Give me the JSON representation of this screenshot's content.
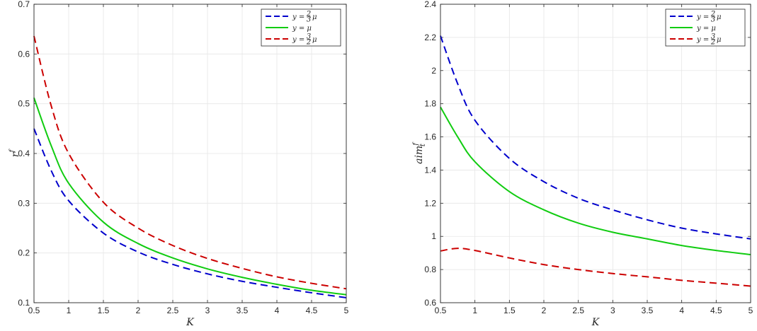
{
  "chart_data": [
    {
      "type": "line",
      "xlabel": "K",
      "ylabel": "r^f",
      "xlim": [
        0.5,
        5
      ],
      "ylim": [
        0.1,
        0.7
      ],
      "xticks": [
        0.5,
        1,
        1.5,
        2,
        2.5,
        3,
        3.5,
        4,
        4.5,
        5
      ],
      "xtick_labels": [
        "0.5",
        "1",
        "1.5",
        "2",
        "2.5",
        "3",
        "3.5",
        "4",
        "4.5",
        "5"
      ],
      "yticks": [
        0.1,
        0.2,
        0.3,
        0.4,
        0.5,
        0.6,
        0.7
      ],
      "ytick_labels": [
        "0.1",
        "0.2",
        "0.3",
        "0.4",
        "0.5",
        "0.6",
        "0.7"
      ],
      "grid": true,
      "legend_position": "top-right",
      "x": [
        0.5,
        0.75,
        1,
        1.5,
        2,
        2.5,
        3,
        3.5,
        4,
        4.5,
        5
      ],
      "series": [
        {
          "name": "y = 2/3 μ",
          "color": "#0000cc",
          "style": "dashed",
          "values": [
            0.45,
            0.365,
            0.305,
            0.24,
            0.202,
            0.177,
            0.158,
            0.143,
            0.131,
            0.12,
            0.11
          ]
        },
        {
          "name": "y = μ",
          "color": "#11cc11",
          "style": "solid",
          "values": [
            0.512,
            0.415,
            0.34,
            0.262,
            0.219,
            0.19,
            0.168,
            0.151,
            0.137,
            0.125,
            0.116
          ]
        },
        {
          "name": "y = 3/2 μ",
          "color": "#cc0000",
          "style": "dashed",
          "values": [
            0.636,
            0.495,
            0.4,
            0.302,
            0.25,
            0.215,
            0.189,
            0.169,
            0.152,
            0.139,
            0.128
          ]
        }
      ]
    },
    {
      "type": "line",
      "xlabel": "K",
      "ylabel": "aim_t^f",
      "xlim": [
        0.5,
        5
      ],
      "ylim": [
        0.6,
        2.4
      ],
      "xticks": [
        0.5,
        1,
        1.5,
        2,
        2.5,
        3,
        3.5,
        4,
        4.5,
        5
      ],
      "xtick_labels": [
        "0.5",
        "1",
        "1.5",
        "2",
        "2.5",
        "3",
        "3.5",
        "4",
        "4.5",
        "5"
      ],
      "yticks": [
        0.6,
        0.8,
        1,
        1.2,
        1.4,
        1.6,
        1.8,
        2,
        2.2,
        2.4
      ],
      "ytick_labels": [
        "0.6",
        "0.8",
        "1",
        "1.2",
        "1.4",
        "1.6",
        "1.8",
        "2",
        "2.2",
        "2.4"
      ],
      "grid": true,
      "legend_position": "top-right",
      "x": [
        0.5,
        0.75,
        1,
        1.5,
        2,
        2.5,
        3,
        3.5,
        4,
        4.5,
        5
      ],
      "series": [
        {
          "name": "y = 2/3 μ",
          "color": "#0000cc",
          "style": "dashed",
          "values": [
            2.21,
            1.92,
            1.7,
            1.47,
            1.33,
            1.23,
            1.16,
            1.1,
            1.05,
            1.015,
            0.985
          ]
        },
        {
          "name": "y = μ",
          "color": "#11cc11",
          "style": "solid",
          "values": [
            1.78,
            1.6,
            1.45,
            1.27,
            1.16,
            1.08,
            1.025,
            0.985,
            0.945,
            0.915,
            0.89
          ]
        },
        {
          "name": "y = 3/2 μ",
          "color": "#cc0000",
          "style": "dashed",
          "values": [
            0.912,
            0.928,
            0.915,
            0.87,
            0.83,
            0.8,
            0.776,
            0.756,
            0.735,
            0.718,
            0.7
          ]
        }
      ]
    }
  ]
}
